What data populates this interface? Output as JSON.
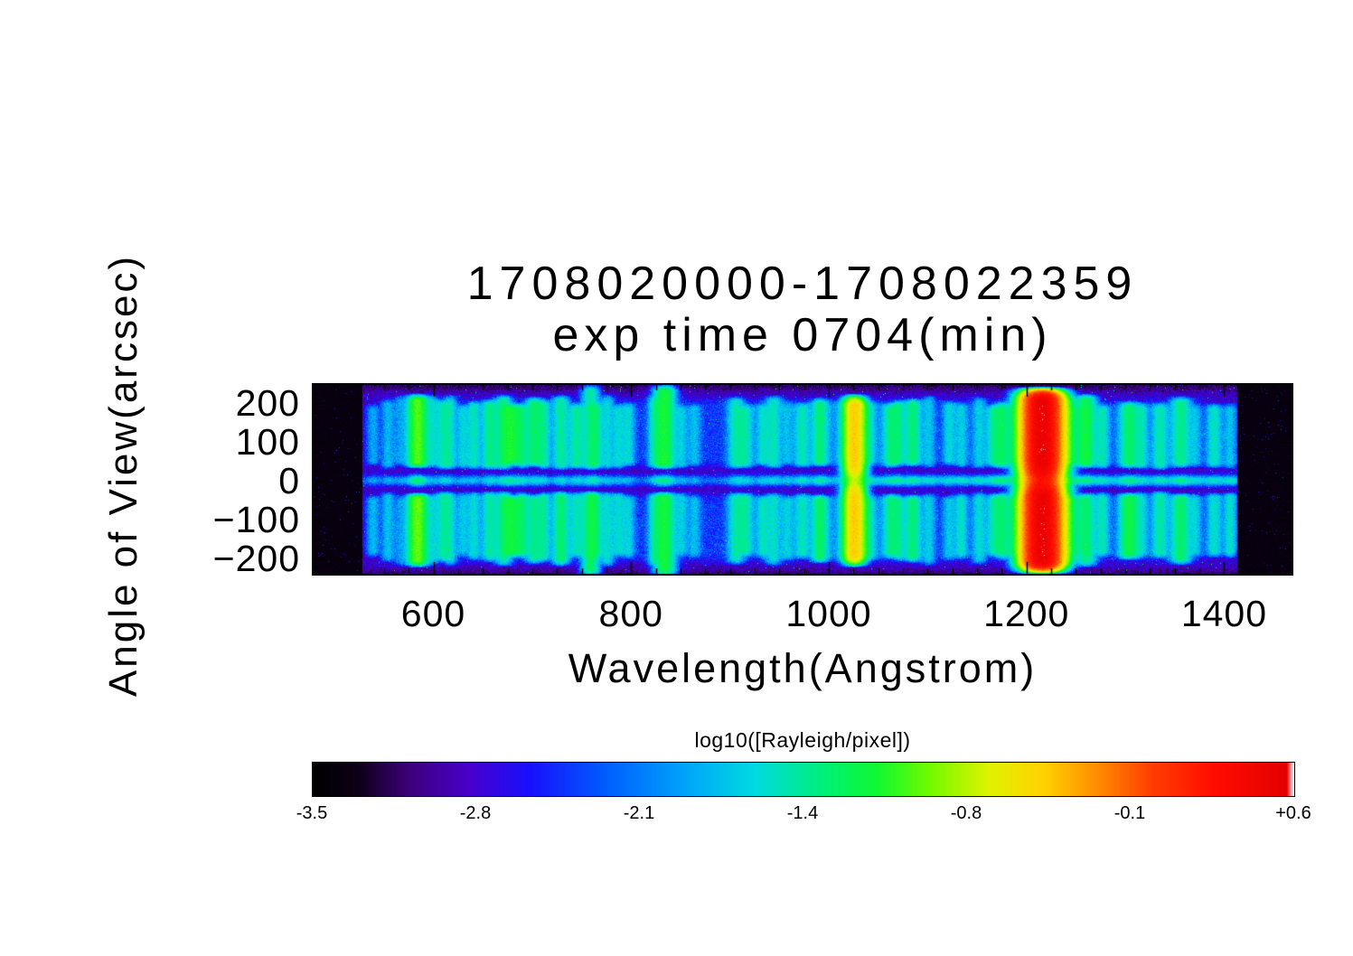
{
  "chart_data": {
    "type": "heatmap",
    "title": "1708020000-1708022359",
    "subtitle": "exp time 0704(min)",
    "xlabel": "Wavelength(Angstrom)",
    "ylabel": "Angle of View(arcsec)",
    "xlim": [
      477,
      1470
    ],
    "ylim": [
      -245,
      251
    ],
    "x_ticks": [
      600,
      800,
      1000,
      1200,
      1400
    ],
    "x_tick_labels": [
      "600",
      "800",
      "1000",
      "1200",
      "1400"
    ],
    "x_major_step": 200,
    "x_minor_step": 25,
    "y_ticks": [
      200,
      100,
      0,
      -100,
      -200
    ],
    "y_tick_labels": [
      "200",
      "100",
      "0",
      "−100",
      "−200"
    ],
    "y_major_step": 100,
    "y_minor_step": 25,
    "data_wavelength_range": [
      528,
      1413
    ],
    "grid": false,
    "colors": {
      "background": "#ffffff",
      "text": "#000000",
      "frame": "#000000"
    },
    "colorbar": {
      "label": "log10([Rayleigh/pixel])",
      "tick_labels": [
        "-3.5",
        "-2.8",
        "-2.1",
        "-1.4",
        "-0.8",
        "-0.1",
        "+0.6"
      ],
      "min": -3.5,
      "max": 0.6,
      "position": "bottom"
    },
    "colormap_stops": [
      [
        0.0,
        0,
        0,
        0
      ],
      [
        0.045,
        12,
        0,
        22
      ],
      [
        0.1,
        62,
        0,
        125
      ],
      [
        0.16,
        72,
        0,
        205
      ],
      [
        0.22,
        25,
        15,
        252
      ],
      [
        0.3,
        0,
        95,
        255
      ],
      [
        0.38,
        0,
        165,
        250
      ],
      [
        0.45,
        0,
        218,
        225
      ],
      [
        0.52,
        0,
        240,
        120
      ],
      [
        0.575,
        15,
        248,
        50
      ],
      [
        0.63,
        115,
        250,
        0
      ],
      [
        0.69,
        225,
        242,
        0
      ],
      [
        0.745,
        255,
        210,
        0
      ],
      [
        0.8,
        255,
        140,
        0
      ],
      [
        0.855,
        255,
        62,
        0
      ],
      [
        0.92,
        255,
        12,
        0
      ],
      [
        0.993,
        228,
        0,
        0
      ],
      [
        1.0,
        255,
        255,
        255
      ]
    ],
    "background_log_intensity": -2.82,
    "center_line": {
      "y_arcsec": 0,
      "sigma_arcsec": 7,
      "log_intensity_left": -2.35,
      "log_intensity_right": -1.8
    },
    "torus_lobes": {
      "inner_arcsec": 30,
      "outer_arcsec": 200
    },
    "emission_lines_format": [
      "wavelength_angstrom",
      "log10_peak_rayleigh_per_pixel",
      "sigma_angstrom",
      "kind"
    ],
    "emission_lines": [
      [
        539,
        -1.95,
        4,
        "normal"
      ],
      [
        554,
        -1.85,
        4,
        "normal"
      ],
      [
        566,
        -2.0,
        4,
        "normal"
      ],
      [
        584,
        -1.05,
        6,
        "normal"
      ],
      [
        599,
        -1.9,
        4,
        "normal"
      ],
      [
        610,
        -1.6,
        5,
        "normal"
      ],
      [
        617,
        -1.8,
        4,
        "normal"
      ],
      [
        630,
        -1.75,
        4,
        "normal"
      ],
      [
        641,
        -1.7,
        4,
        "normal"
      ],
      [
        657,
        -1.45,
        5,
        "normal"
      ],
      [
        671,
        -1.5,
        5,
        "normal"
      ],
      [
        680,
        -1.3,
        6,
        "normal"
      ],
      [
        690,
        -1.55,
        4,
        "normal"
      ],
      [
        702,
        -1.45,
        5,
        "normal"
      ],
      [
        712,
        -1.6,
        4,
        "normal"
      ],
      [
        729,
        -1.45,
        5,
        "normal"
      ],
      [
        745,
        -1.5,
        5,
        "normal"
      ],
      [
        759,
        -1.4,
        5,
        "tall"
      ],
      [
        765,
        -1.55,
        4,
        "normal"
      ],
      [
        776,
        -1.65,
        4,
        "normal"
      ],
      [
        787,
        -1.75,
        4,
        "normal"
      ],
      [
        797,
        -1.8,
        4,
        "normal"
      ],
      [
        824,
        -1.65,
        4,
        "normal"
      ],
      [
        834,
        -1.15,
        6,
        "tall"
      ],
      [
        851,
        -1.8,
        4,
        "normal"
      ],
      [
        864,
        -1.9,
        4,
        "normal"
      ],
      [
        906,
        -1.55,
        5,
        "normal"
      ],
      [
        916,
        -1.6,
        5,
        "normal"
      ],
      [
        933,
        -1.7,
        4,
        "normal"
      ],
      [
        944,
        -1.6,
        5,
        "normal"
      ],
      [
        958,
        -1.85,
        4,
        "normal"
      ],
      [
        973,
        -1.5,
        5,
        "normal"
      ],
      [
        991,
        -1.4,
        5,
        "normal"
      ],
      [
        1026,
        -0.45,
        6,
        "beta"
      ],
      [
        1026,
        -2.0,
        18,
        "normal"
      ],
      [
        1041,
        -1.7,
        4,
        "normal"
      ],
      [
        1063,
        -1.5,
        5,
        "normal"
      ],
      [
        1071,
        -1.55,
        4,
        "normal"
      ],
      [
        1085,
        -1.45,
        5,
        "normal"
      ],
      [
        1101,
        -1.75,
        4,
        "normal"
      ],
      [
        1122,
        -1.8,
        4,
        "normal"
      ],
      [
        1134,
        -1.7,
        4,
        "normal"
      ],
      [
        1152,
        -1.75,
        4,
        "normal"
      ],
      [
        1168,
        -1.6,
        5,
        "normal"
      ],
      [
        1176,
        -1.5,
        5,
        "normal"
      ],
      [
        1216,
        0.5,
        10,
        "lya"
      ],
      [
        1216,
        -1.5,
        28,
        "normal"
      ],
      [
        1241,
        -1.55,
        5,
        "normal"
      ],
      [
        1260,
        -1.35,
        6,
        "normal"
      ],
      [
        1277,
        -1.7,
        4,
        "normal"
      ],
      [
        1304,
        -1.3,
        6,
        "normal"
      ],
      [
        1317,
        -1.75,
        4,
        "normal"
      ],
      [
        1335,
        -1.6,
        5,
        "normal"
      ],
      [
        1356,
        -1.35,
        6,
        "normal"
      ],
      [
        1371,
        -1.8,
        4,
        "normal"
      ],
      [
        1390,
        -1.65,
        5,
        "normal"
      ],
      [
        1406,
        -1.7,
        4,
        "normal"
      ]
    ]
  }
}
